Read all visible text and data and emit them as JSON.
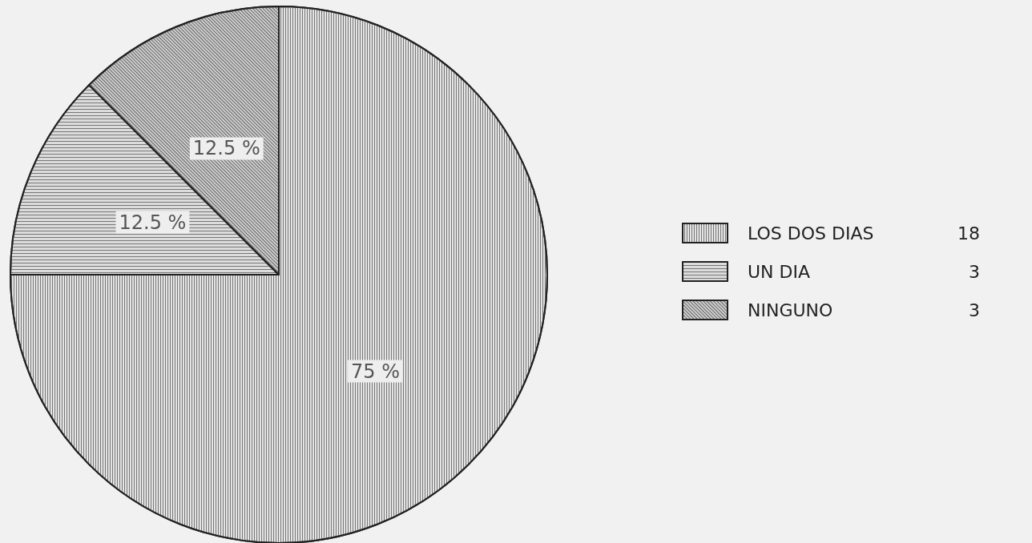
{
  "chart_data": {
    "type": "pie",
    "categories": [
      "LOS DOS DIAS",
      "UN DIA",
      "NINGUNO"
    ],
    "values": [
      75,
      12.5,
      12.5
    ],
    "annotations": [
      "18",
      "3",
      "3"
    ],
    "value_labels": [
      "75 %",
      "12.5 %",
      "12.5 %"
    ],
    "colors": [
      "#e4e4e4",
      "#dcdcdc",
      "#cfcfcf"
    ],
    "legend": "right"
  }
}
